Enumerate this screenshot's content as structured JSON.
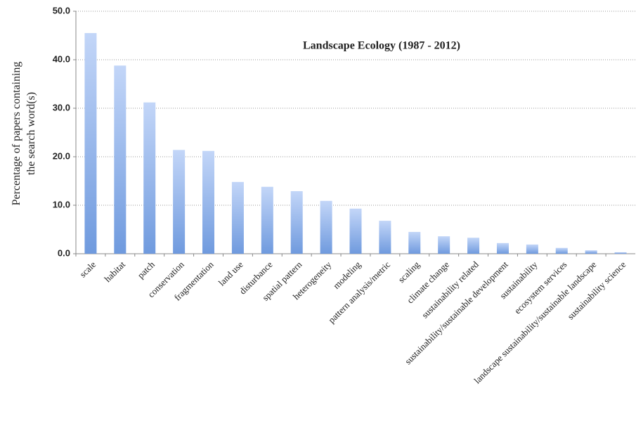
{
  "chart_data": {
    "type": "bar",
    "title": "Landscape Ecology (1987 - 2012)",
    "y_label": [
      "Percentage of papers containing",
      "the search word(s)"
    ],
    "categories": [
      "scale",
      "habitat",
      "patch",
      "conservation",
      "fragmentation",
      "land use",
      "disturbance",
      "spatial pattern",
      "heterogeneity",
      "modeling",
      "pattern analysis/metric",
      "scaling",
      "climate change",
      "sustainability related",
      "sustainability/sustainable development",
      "sustainability",
      "ecosystem services",
      "landscape sustainability/sustainable landscape",
      "sustainability science"
    ],
    "values": [
      45.5,
      38.8,
      31.2,
      21.4,
      21.2,
      14.8,
      13.8,
      12.9,
      10.9,
      9.3,
      6.8,
      4.5,
      3.6,
      3.3,
      2.2,
      1.9,
      1.2,
      0.7,
      0.3
    ],
    "color": "#6f9ade",
    "ylim": [
      0,
      50
    ],
    "yticks": [
      {
        "value": 0,
        "label": "0.0"
      },
      {
        "value": 10,
        "label": "10.0"
      },
      {
        "value": 20,
        "label": "20.0"
      },
      {
        "value": 30,
        "label": "30.0"
      },
      {
        "value": 40,
        "label": "40.0"
      },
      {
        "value": 50,
        "label": "50.0"
      }
    ],
    "grid": true
  }
}
